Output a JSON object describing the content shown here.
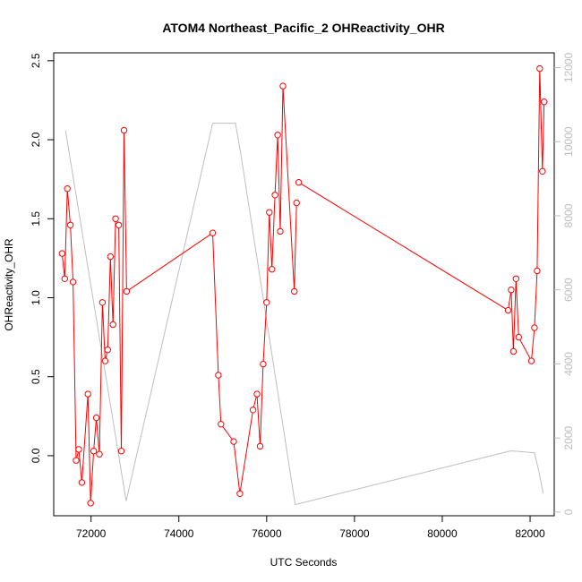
{
  "chart_data": {
    "type": "line",
    "title": "ATOM4 Northeast_Pacific_2 OHReactivity_OHR",
    "xlabel": "UTC Seconds",
    "ylabel": "OHReactivity_OHR",
    "xlim": [
      71150,
      82550
    ],
    "ylim": [
      -0.38,
      2.55
    ],
    "y2lim": [
      -100,
      12400
    ],
    "x_ticks": [
      72000,
      74000,
      76000,
      78000,
      80000,
      82000
    ],
    "y_ticks": [
      0.0,
      0.5,
      1.0,
      1.5,
      2.0,
      2.5
    ],
    "y2_ticks": [
      0,
      2000,
      4000,
      6000,
      8000,
      10000,
      12000
    ],
    "x_tick_labels": [
      "72000",
      "74000",
      "76000",
      "78000",
      "80000",
      "82000"
    ],
    "y_tick_labels": [
      "0.0",
      "0.5",
      "1.0",
      "1.5",
      "2.0",
      "2.5"
    ],
    "y2_tick_labels": [
      "0",
      "2000",
      "4000",
      "6000",
      "8000",
      "10000",
      "12000"
    ],
    "colors": {
      "ohr": "#ff0000",
      "altitude": "#bebebe",
      "axis": "#000000",
      "right_axis": "#bebebe"
    },
    "series": [
      {
        "axis": "left",
        "style": "line-points",
        "segments": [
          {
            "x": [
              71340,
              71400,
              71460,
              71530,
              71590,
              71660,
              71720,
              71790,
              71930,
              71990,
              72060,
              72120,
              72190,
              72260,
              72320,
              72380,
              72440,
              72500,
              72560,
              72630,
              72690,
              72750,
              72810
            ],
            "y": [
              1.28,
              1.12,
              1.69,
              1.46,
              1.1,
              -0.03,
              0.04,
              -0.17,
              0.39,
              -0.3,
              0.03,
              0.24,
              0.01,
              0.97,
              0.6,
              0.67,
              1.26,
              0.83,
              1.5,
              1.46,
              0.03,
              2.06,
              1.04
            ]
          },
          {
            "x": [
              72810,
              74770
            ],
            "y": [
              1.04,
              1.41
            ]
          },
          {
            "x": [
              74770,
              74900,
              74960,
              75250,
              75390,
              75690,
              75780,
              75850,
              75920,
              76000,
              76060,
              76120,
              76190,
              76250,
              76310,
              76370,
              76630,
              76680
            ],
            "y": [
              1.41,
              0.51,
              0.2,
              0.09,
              -0.24,
              0.29,
              0.39,
              0.06,
              0.58,
              0.97,
              1.54,
              1.18,
              1.65,
              2.03,
              1.42,
              2.34,
              1.04,
              1.6
            ]
          },
          {
            "x": [
              76730,
              81500
            ],
            "y": [
              1.73,
              0.92
            ]
          },
          {
            "x": [
              81500,
              81570,
              81620,
              81680,
              81740,
              82030,
              82100,
              82160,
              82220,
              82280,
              82320
            ],
            "y": [
              0.92,
              1.05,
              0.66,
              1.12,
              0.75,
              0.6,
              0.81,
              1.17,
              2.45,
              1.8,
              2.24
            ]
          }
        ]
      },
      {
        "axis": "right",
        "style": "line",
        "x": [
          71420,
          72800,
          74770,
          75290,
          75420,
          76650,
          81550,
          81700,
          82100,
          82200,
          82300
        ],
        "y": [
          10300,
          300,
          10500,
          10500,
          9600,
          200,
          1650,
          1640,
          1600,
          1100,
          500
        ]
      }
    ]
  }
}
